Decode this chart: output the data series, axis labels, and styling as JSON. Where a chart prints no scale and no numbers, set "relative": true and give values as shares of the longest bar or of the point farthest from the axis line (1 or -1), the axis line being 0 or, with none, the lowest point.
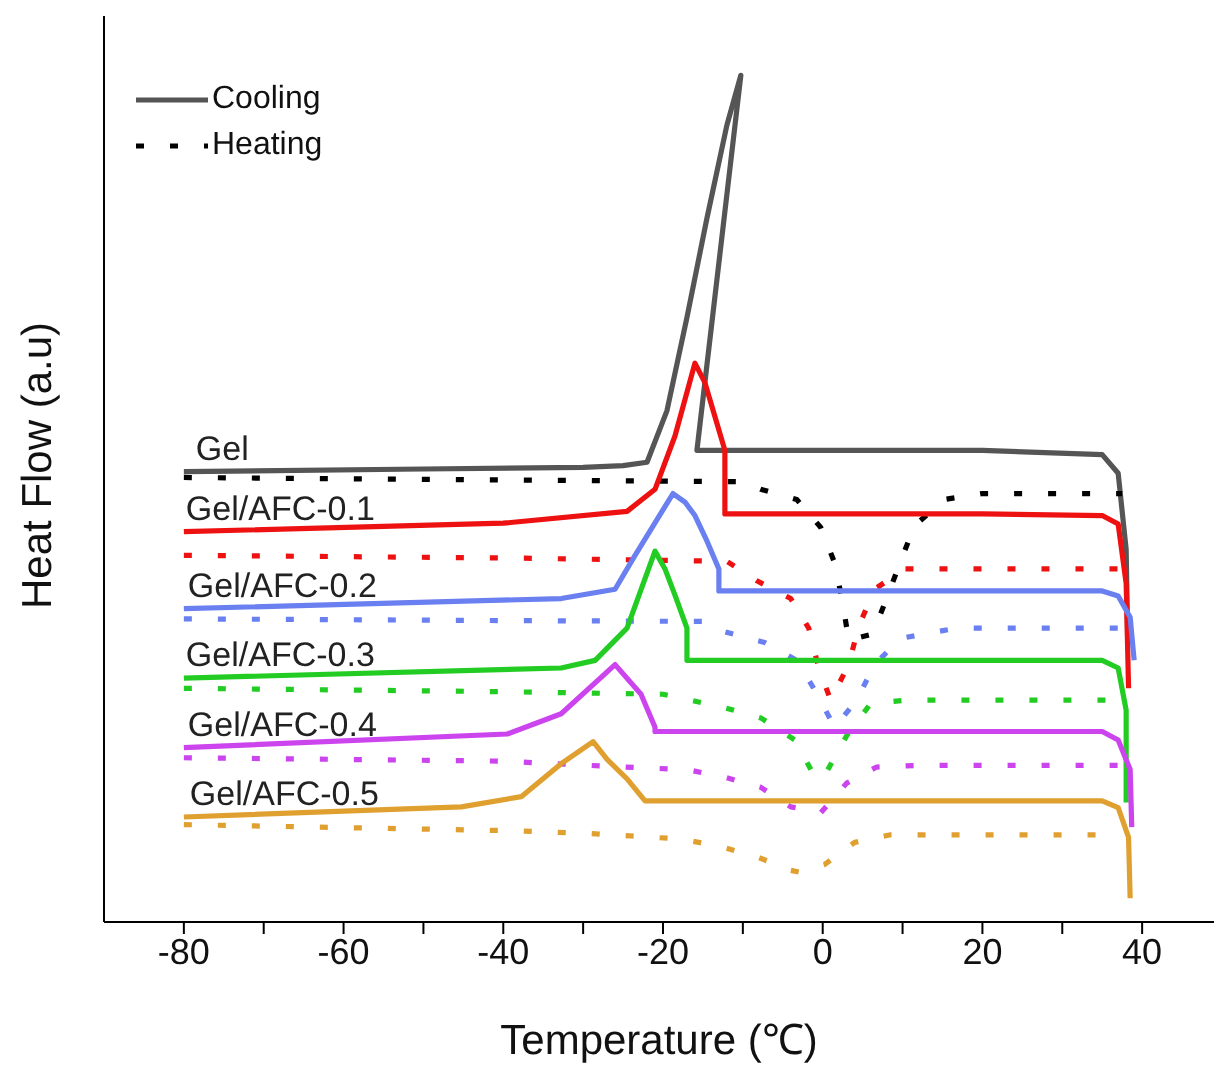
{
  "chart_data": {
    "type": "line",
    "relative": true,
    "xlabel": "Temperature (℃)",
    "ylabel": "Heat Flow (a.u)",
    "xlim": [
      -90,
      49
    ],
    "xticks": [
      -80,
      {
        "value": -70,
        "label": null
      },
      -60,
      {
        "value": -50,
        "label": null
      },
      -40,
      {
        "value": -30,
        "label": null
      },
      -20,
      {
        "value": -10,
        "label": null
      },
      0,
      {
        "value": 10,
        "label": null
      },
      20,
      {
        "value": 30,
        "label": null
      },
      40
    ],
    "grid": false,
    "legend": "top left",
    "marker": "none",
    "series": [
      {
        "name": "Cooling",
        "color": "#555555",
        "line_style": "solid",
        "x": [
          38.2,
          38,
          37,
          35,
          20,
          0,
          -15.75,
          -10.25,
          -12,
          -14.5,
          -17,
          -19.5,
          -22,
          -25,
          -30,
          -50,
          -80
        ],
        "values": [
          0.328,
          0.44,
          0.53,
          0.552,
          0.557,
          0.557,
          0.557,
          1.0,
          0.941,
          0.831,
          0.714,
          0.604,
          0.543,
          0.539,
          0.537,
          0.535,
          0.532
        ]
      },
      {
        "name": "Heating",
        "color": "#000000",
        "line_style": "dotted",
        "x": [
          -80,
          -40,
          -10,
          -7.75,
          -3.25,
          -0.25,
          1.5,
          2.5,
          3.25,
          6.25,
          8,
          9.75,
          11.5,
          15.25,
          20,
          37.5
        ],
        "values": [
          0.525,
          0.522,
          0.52,
          0.511,
          0.499,
          0.466,
          0.424,
          0.377,
          0.333,
          0.34,
          0.382,
          0.426,
          0.468,
          0.499,
          0.506,
          0.506
        ]
      },
      {
        "color": "#ee1111",
        "line_style": "solid",
        "x": [
          38.3,
          38,
          37,
          35,
          20,
          0,
          -12.25,
          -12.25,
          -13.5,
          -14.75,
          -16,
          -18.5,
          -21,
          -24.5,
          -40,
          -80
        ],
        "values": [
          0.276,
          0.4,
          0.47,
          0.48,
          0.482,
          0.482,
          0.482,
          0.557,
          0.597,
          0.637,
          0.66,
          0.574,
          0.511,
          0.485,
          0.471,
          0.461
        ]
      },
      {
        "color": "#ee1111",
        "line_style": "dotted",
        "x": [
          -80,
          -40,
          -12,
          -8.25,
          -4,
          -1.75,
          -0.5,
          1,
          3.25,
          4.5,
          6.5,
          10.25,
          15.25,
          37
        ],
        "values": [
          0.433,
          0.43,
          0.426,
          0.403,
          0.382,
          0.347,
          0.3,
          0.262,
          0.304,
          0.349,
          0.393,
          0.417,
          0.417,
          0.417
        ]
      },
      {
        "color": "#6a7ff0",
        "line_style": "solid",
        "x": [
          39,
          38.5,
          37,
          35,
          20,
          0,
          -13,
          -13,
          -14.5,
          -16,
          -17.25,
          -18.75,
          -23.5,
          -26,
          -32.75,
          -80
        ],
        "values": [
          0.309,
          0.36,
          0.385,
          0.391,
          0.391,
          0.391,
          0.391,
          0.417,
          0.45,
          0.48,
          0.496,
          0.506,
          0.433,
          0.393,
          0.382,
          0.37
        ]
      },
      {
        "color": "#6a7ff0",
        "line_style": "dotted",
        "x": [
          -80,
          -40,
          -15,
          -12.75,
          -7.25,
          -3.25,
          -1,
          1.5,
          4.25,
          6.5,
          9.75,
          16.75,
          37
        ],
        "values": [
          0.358,
          0.356,
          0.355,
          0.344,
          0.33,
          0.309,
          0.274,
          0.23,
          0.262,
          0.304,
          0.335,
          0.347,
          0.347
        ]
      },
      {
        "color": "#22cc22",
        "line_style": "solid",
        "x": [
          38,
          38,
          37,
          35,
          20,
          0,
          -17,
          -17,
          -18.5,
          -19.75,
          -21,
          -24.5,
          -28.5,
          -32.75,
          -80
        ],
        "values": [
          0.141,
          0.25,
          0.3,
          0.309,
          0.309,
          0.309,
          0.309,
          0.347,
          0.386,
          0.417,
          0.438,
          0.347,
          0.309,
          0.3,
          0.288
        ]
      },
      {
        "color": "#22cc22",
        "line_style": "dotted",
        "x": [
          -80,
          -40,
          -20,
          -12.25,
          -7.75,
          -3.5,
          -1.25,
          0,
          3,
          6,
          10.5,
          37
        ],
        "values": [
          0.276,
          0.272,
          0.269,
          0.253,
          0.241,
          0.215,
          0.176,
          0.169,
          0.22,
          0.258,
          0.262,
          0.262
        ]
      },
      {
        "color": "#cc44ee",
        "line_style": "solid",
        "x": [
          38.7,
          38.5,
          37,
          35,
          20,
          0,
          -21,
          -21,
          -22.75,
          -26,
          -32.75,
          -39.5,
          -80
        ],
        "values": [
          0.112,
          0.18,
          0.215,
          0.225,
          0.225,
          0.225,
          0.225,
          0.23,
          0.269,
          0.304,
          0.246,
          0.222,
          0.206
        ]
      },
      {
        "color": "#cc44ee",
        "line_style": "dotted",
        "x": [
          -80,
          -40,
          -25,
          -17,
          -12.25,
          -7.75,
          -4,
          -0.25,
          3,
          6.75,
          12.25,
          37
        ],
        "values": [
          0.194,
          0.19,
          0.183,
          0.18,
          0.171,
          0.159,
          0.136,
          0.129,
          0.164,
          0.183,
          0.185,
          0.185
        ]
      },
      {
        "color": "#e0a030",
        "line_style": "solid",
        "x": [
          38.5,
          38.3,
          37,
          35,
          20,
          0,
          -22.25,
          -24.5,
          -27,
          -28.75,
          -32.75,
          -37.75,
          -45.25,
          -80
        ],
        "values": [
          0.028,
          0.1,
          0.135,
          0.143,
          0.143,
          0.143,
          0.143,
          0.169,
          0.192,
          0.213,
          0.187,
          0.148,
          0.136,
          0.124
        ]
      },
      {
        "color": "#e0a030",
        "line_style": "dotted",
        "x": [
          -80,
          -40,
          -30,
          -17.75,
          -12.75,
          -8.25,
          -4,
          -3,
          0.25,
          4,
          8.5,
          14,
          37
        ],
        "values": [
          0.115,
          0.108,
          0.105,
          0.098,
          0.089,
          0.077,
          0.061,
          0.059,
          0.068,
          0.094,
          0.103,
          0.103,
          0.103
        ]
      }
    ],
    "annotations": [
      {
        "text": "Gel",
        "x": -78.5,
        "y": 0.532
      },
      {
        "text": "Gel/AFC-0.1",
        "x": -79.75,
        "y": 0.461
      },
      {
        "text": "Gel/AFC-0.2",
        "x": -79.5,
        "y": 0.37
      },
      {
        "text": "Gel/AFC-0.3",
        "x": -79.75,
        "y": 0.288
      },
      {
        "text": "Gel/AFC-0.4",
        "x": -79.5,
        "y": 0.206
      },
      {
        "text": "Gel/AFC-0.5",
        "x": -79.25,
        "y": 0.124
      }
    ]
  }
}
